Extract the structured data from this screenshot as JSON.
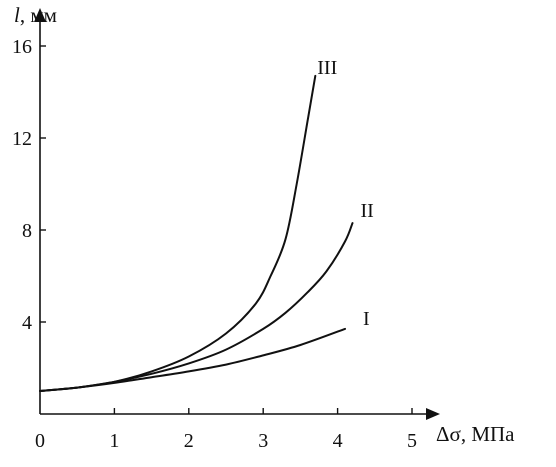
{
  "chart_data": {
    "type": "line",
    "title": "",
    "ylabel": {
      "var": "l",
      "unit": ", мм"
    },
    "xlabel": "Δσ, МПа",
    "xlim": [
      0,
      5
    ],
    "ylim": [
      0,
      16
    ],
    "xticks": [
      "0",
      "1",
      "2",
      "3",
      "4",
      "5"
    ],
    "yticks": [
      "4",
      "8",
      "12",
      "16"
    ],
    "grid": false,
    "legend": "none",
    "series": [
      {
        "name": "I",
        "x": [
          0,
          0.5,
          1.0,
          1.5,
          2.0,
          2.5,
          3.0,
          3.5,
          4.1
        ],
        "y": [
          1.0,
          1.15,
          1.35,
          1.6,
          1.85,
          2.15,
          2.55,
          3.0,
          3.7
        ]
      },
      {
        "name": "II",
        "x": [
          0,
          0.5,
          1.0,
          1.5,
          2.0,
          2.5,
          3.0,
          3.3,
          3.6,
          3.85,
          4.1,
          4.2
        ],
        "y": [
          1.0,
          1.15,
          1.4,
          1.75,
          2.2,
          2.8,
          3.7,
          4.4,
          5.3,
          6.2,
          7.5,
          8.3
        ]
      },
      {
        "name": "III",
        "x": [
          0,
          0.5,
          1.0,
          1.5,
          2.0,
          2.5,
          2.9,
          3.1,
          3.3,
          3.45,
          3.6,
          3.7
        ],
        "y": [
          1.0,
          1.15,
          1.4,
          1.85,
          2.5,
          3.5,
          4.8,
          6.0,
          7.6,
          10.0,
          12.8,
          14.7
        ]
      }
    ],
    "colors": {
      "ink": "#111111"
    }
  }
}
